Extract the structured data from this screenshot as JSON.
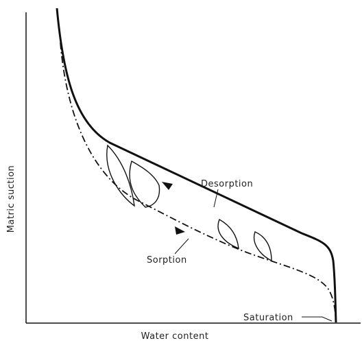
{
  "axes": {
    "x_label": "Water content",
    "y_label": "Matric suction"
  },
  "curves": {
    "desorption": "Desorption",
    "sorption": "Sorption"
  },
  "annotations": {
    "saturation": "Saturation"
  }
}
